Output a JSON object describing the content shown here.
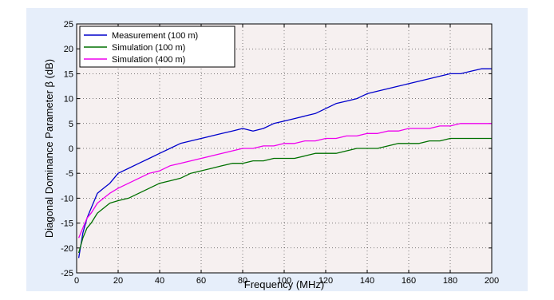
{
  "chart_data": {
    "type": "line",
    "title": "",
    "xlabel": "Frequency (MHz)",
    "ylabel": "Diagonal Dominance Parameter β (dB)",
    "xlim": [
      0,
      200
    ],
    "ylim": [
      -25,
      25
    ],
    "xticks": [
      0,
      20,
      40,
      60,
      80,
      100,
      120,
      140,
      160,
      180,
      200
    ],
    "yticks": [
      -25,
      -20,
      -15,
      -10,
      -5,
      0,
      5,
      10,
      15,
      20,
      25
    ],
    "grid": true,
    "legend_position": "top-left",
    "series": [
      {
        "name": "Measurement (100 m)",
        "color": "#0000cc",
        "x": [
          1,
          3,
          5,
          7,
          10,
          13,
          16,
          20,
          25,
          30,
          35,
          40,
          45,
          50,
          55,
          60,
          65,
          70,
          75,
          80,
          85,
          90,
          95,
          100,
          105,
          110,
          115,
          120,
          125,
          130,
          135,
          140,
          145,
          150,
          155,
          160,
          165,
          170,
          175,
          180,
          185,
          190,
          195,
          200
        ],
        "y": [
          -22,
          -17,
          -14,
          -12,
          -9,
          -8,
          -7,
          -5,
          -4,
          -3,
          -2,
          -1,
          0,
          1,
          1.5,
          2,
          2.5,
          3,
          3.5,
          4,
          3.5,
          4,
          5,
          5.5,
          6,
          6.5,
          7,
          8,
          9,
          9.5,
          10,
          11,
          11.5,
          12,
          12.5,
          13,
          13.5,
          14,
          14.5,
          15,
          15,
          15.5,
          16,
          16
        ]
      },
      {
        "name": "Simulation (100 m)",
        "color": "#007000",
        "x": [
          1,
          3,
          5,
          7,
          10,
          13,
          16,
          20,
          25,
          30,
          35,
          40,
          45,
          50,
          55,
          60,
          65,
          70,
          75,
          80,
          85,
          90,
          95,
          100,
          105,
          110,
          115,
          120,
          125,
          130,
          135,
          140,
          145,
          150,
          155,
          160,
          165,
          170,
          175,
          180,
          185,
          190,
          195,
          200
        ],
        "y": [
          -21,
          -18,
          -16,
          -15,
          -13,
          -12,
          -11,
          -10.5,
          -10,
          -9,
          -8,
          -7,
          -6.5,
          -6,
          -5,
          -4.5,
          -4,
          -3.5,
          -3,
          -3,
          -2.5,
          -2.5,
          -2,
          -2,
          -2,
          -1.5,
          -1,
          -1,
          -1,
          -0.5,
          0,
          0,
          0,
          0.5,
          1,
          1,
          1,
          1.5,
          1.5,
          2,
          2,
          2,
          2,
          2
        ]
      },
      {
        "name": "Simulation (400 m)",
        "color": "#ee00ee",
        "x": [
          1,
          3,
          5,
          7,
          10,
          13,
          16,
          20,
          25,
          30,
          35,
          40,
          45,
          50,
          55,
          60,
          65,
          70,
          75,
          80,
          85,
          90,
          95,
          100,
          105,
          110,
          115,
          120,
          125,
          130,
          135,
          140,
          145,
          150,
          155,
          160,
          165,
          170,
          175,
          180,
          185,
          190,
          195,
          200
        ],
        "y": [
          -18,
          -16,
          -14,
          -13,
          -11,
          -10,
          -9,
          -8,
          -7,
          -6,
          -5,
          -4.5,
          -3.5,
          -3,
          -2.5,
          -2,
          -1.5,
          -1,
          -0.5,
          0,
          0,
          0.5,
          0.5,
          1,
          1,
          1.5,
          1.5,
          2,
          2,
          2.5,
          2.5,
          3,
          3,
          3.5,
          3.5,
          4,
          4,
          4,
          4.5,
          4.5,
          5,
          5,
          5,
          5
        ]
      }
    ]
  }
}
